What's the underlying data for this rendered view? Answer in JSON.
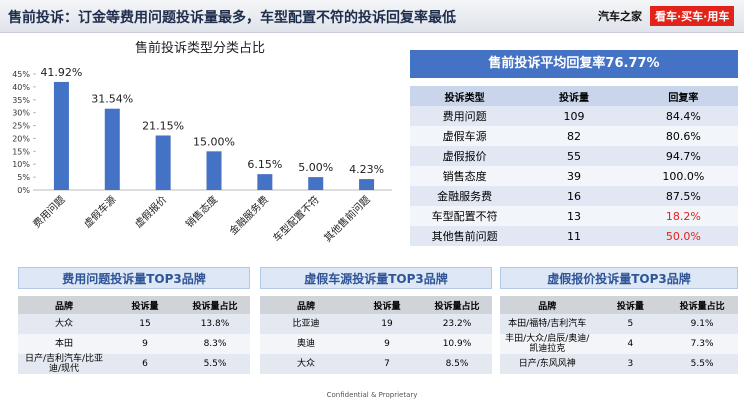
{
  "header": {
    "title": "售前投诉：订金等费用问题投诉量最多，车型配置不符的投诉回复率最低",
    "logo": "汽车之家",
    "slogan": "看车·买车·用车"
  },
  "chart_data": {
    "type": "bar",
    "title": "售前投诉类型分类占比",
    "categories": [
      "费用问题",
      "虚假车源",
      "虚假报价",
      "销售态度",
      "金融服务费",
      "车型配置不符",
      "其他售前问题"
    ],
    "values": [
      41.92,
      31.54,
      21.15,
      15.0,
      6.15,
      5.0,
      4.23
    ],
    "value_labels": [
      "41.92%",
      "31.54%",
      "21.15%",
      "15.00%",
      "6.15%",
      "5.00%",
      "4.23%"
    ],
    "color": "#4472c4",
    "ylim": [
      0,
      45
    ],
    "yticks": [
      {
        "value": 0,
        "label": "0%"
      },
      {
        "value": 5,
        "label": "5%"
      },
      {
        "value": 10,
        "label": "10%"
      },
      {
        "value": 15,
        "label": "15%"
      },
      {
        "value": 20,
        "label": "20%"
      },
      {
        "value": 25,
        "label": "25%"
      },
      {
        "value": 30,
        "label": "30%"
      },
      {
        "value": 35,
        "label": "35%"
      },
      {
        "value": 40,
        "label": "40%"
      },
      {
        "value": 45,
        "label": "45%"
      }
    ],
    "grid": false
  },
  "summary_table": {
    "title": "售前投诉平均回复率76.77%",
    "columns": [
      "投诉类型",
      "投诉量",
      "回复率"
    ],
    "rows": [
      [
        "费用问题",
        "109",
        "84.4%"
      ],
      [
        "虚假车源",
        "82",
        "80.6%"
      ],
      [
        "虚假报价",
        "55",
        "94.7%"
      ],
      [
        "销售态度",
        "39",
        "100.0%"
      ],
      [
        "金融服务费",
        "16",
        "87.5%"
      ],
      [
        "车型配置不符",
        "13",
        "18.2%"
      ],
      [
        "其他售前问题",
        "11",
        "50.0%"
      ]
    ]
  },
  "brand_tables": [
    {
      "title": "费用问题投诉量TOP3品牌",
      "columns": [
        "品牌",
        "投诉量",
        "投诉量占比"
      ],
      "rows": [
        [
          "大众",
          "15",
          "13.8%"
        ],
        [
          "本田",
          "9",
          "8.3%"
        ],
        [
          "日产/吉利汽车/比亚迪/现代",
          "6",
          "5.5%"
        ]
      ]
    },
    {
      "title": "虚假车源投诉量TOP3品牌",
      "columns": [
        "品牌",
        "投诉量",
        "投诉量占比"
      ],
      "rows": [
        [
          "比亚迪",
          "19",
          "23.2%"
        ],
        [
          "奥迪",
          "9",
          "10.9%"
        ],
        [
          "大众",
          "7",
          "8.5%"
        ]
      ]
    },
    {
      "title": "虚假报价投诉量TOP3品牌",
      "columns": [
        "品牌",
        "投诉量",
        "投诉量占比"
      ],
      "rows": [
        [
          "本田/福特/吉利汽车",
          "5",
          "9.1%"
        ],
        [
          "丰田/大众/启辰/奥迪/凯迪拉克",
          "4",
          "7.3%"
        ],
        [
          "日产/东风风神",
          "3",
          "5.5%"
        ]
      ]
    }
  ],
  "footer": "Confidential & Proprietary"
}
